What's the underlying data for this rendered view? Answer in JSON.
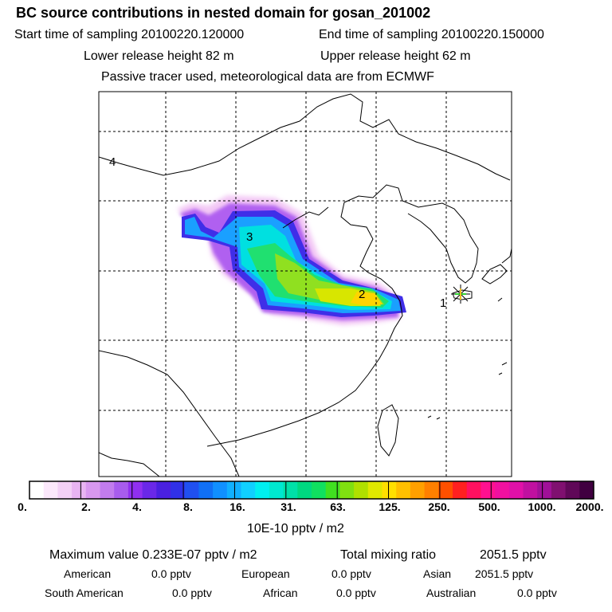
{
  "header": {
    "title": "BC  source contributions in nested domain for gosan_201002",
    "start_time": "Start time of sampling 20100220.120000",
    "end_time": "End time of sampling 20100220.150000",
    "lower_release": "Lower release height   82 m",
    "upper_release": "Upper release height   62 m",
    "note": "Passive tracer used, meteorological data are from ECMWF"
  },
  "map": {
    "labels": [
      "1",
      "2",
      "3",
      "4"
    ]
  },
  "colorbar": {
    "ticks": [
      "0.",
      "2.",
      "4.",
      "8.",
      "16.",
      "31.",
      "63.",
      "125.",
      "250.",
      "500.",
      "1000.",
      "2000."
    ],
    "unit": "10E-10 pptv / m2"
  },
  "stats": {
    "max_label": "Maximum value  0.233E-07 pptv / m2",
    "total_label": "Total mixing ratio",
    "total_value": "2051.5 pptv",
    "sources": [
      {
        "name": "American",
        "value": "0.0 pptv"
      },
      {
        "name": "European",
        "value": "0.0 pptv"
      },
      {
        "name": "Asian",
        "value": "2051.5 pptv"
      },
      {
        "name": "South American",
        "value": "0.0 pptv"
      },
      {
        "name": "African",
        "value": "0.0 pptv"
      },
      {
        "name": "Australian",
        "value": "0.0 pptv"
      }
    ]
  }
}
